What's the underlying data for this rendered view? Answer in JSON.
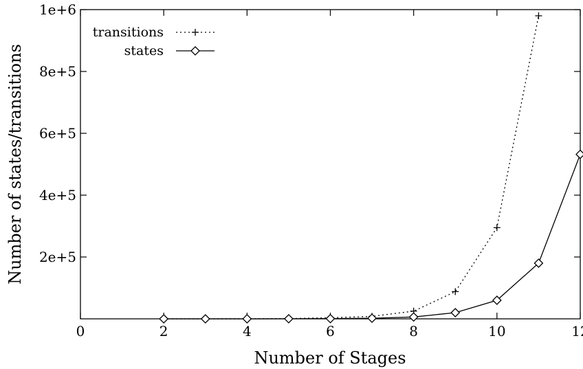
{
  "chart_data": {
    "type": "line",
    "title": "",
    "xlabel": "Number of Stages",
    "ylabel": "Number of states/transitions",
    "xlim": [
      0,
      12
    ],
    "ylim": [
      0,
      1000000
    ],
    "x_ticks": [
      0,
      2,
      4,
      6,
      8,
      10,
      12
    ],
    "x_tick_labels": [
      "0",
      "2",
      "4",
      "6",
      "8",
      "10",
      "12"
    ],
    "y_ticks": [
      200000,
      400000,
      600000,
      800000,
      1000000
    ],
    "y_tick_labels": [
      "2e+5",
      "4e+5",
      "6e+5",
      "8e+5",
      "1e+6"
    ],
    "grid": false,
    "legend_position": "top-left",
    "series": [
      {
        "name": "transitions",
        "style": "dotted",
        "marker": "plus",
        "color": "#000000",
        "x": [
          2,
          3,
          4,
          5,
          6,
          7,
          8,
          9,
          10,
          11
        ],
        "y": [
          20,
          80,
          300,
          1000,
          3500,
          8000,
          25000,
          88000,
          295000,
          980000
        ]
      },
      {
        "name": "states",
        "style": "solid",
        "marker": "diamond",
        "color": "#000000",
        "x": [
          2,
          3,
          4,
          5,
          6,
          7,
          8,
          9,
          10,
          11,
          12
        ],
        "y": [
          10,
          30,
          100,
          300,
          700,
          2000,
          6000,
          20000,
          60000,
          180000,
          532000
        ]
      }
    ]
  }
}
